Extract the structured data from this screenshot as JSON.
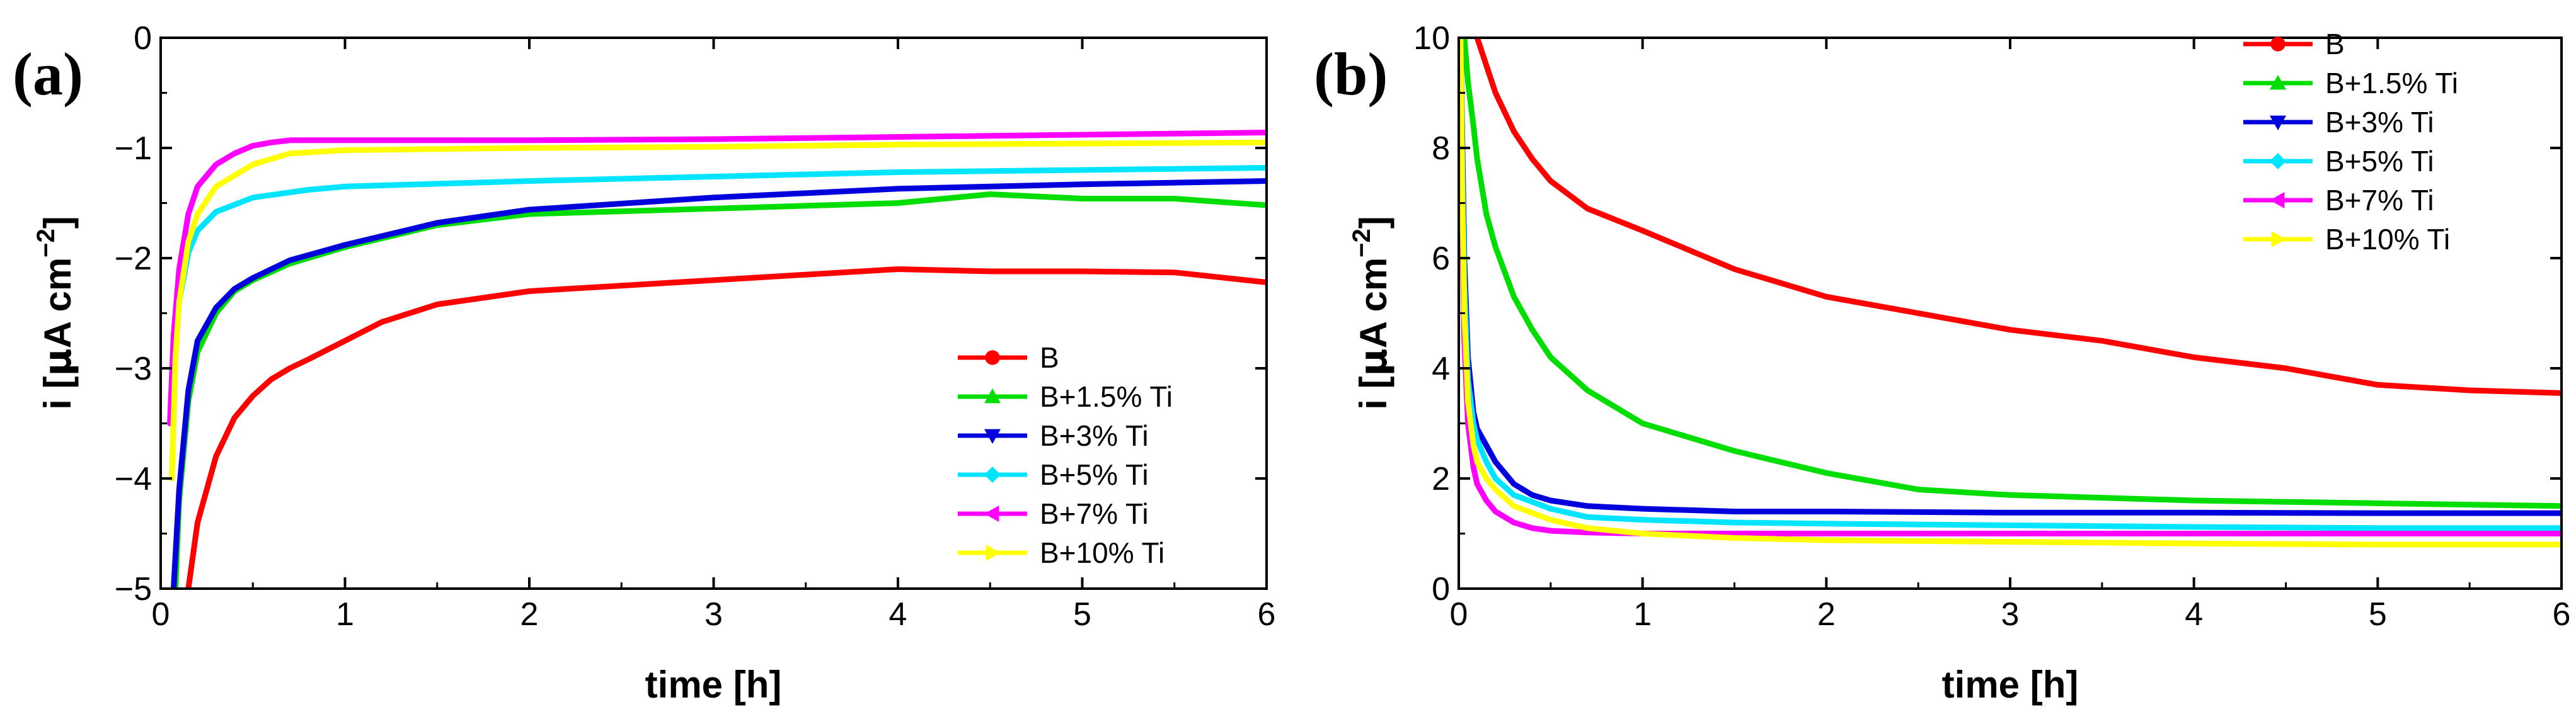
{
  "chart_data": [
    {
      "type": "line",
      "panel_label": "(a)",
      "xlabel": "time [h]",
      "ylabel": {
        "pre": "i [",
        "mu": "μ",
        "mid": "A cm",
        "exp": "−2",
        "post": "]"
      },
      "xlim": [
        0,
        6
      ],
      "ylim": [
        -5,
        0
      ],
      "xticks": [
        0,
        1,
        2,
        3,
        4,
        5,
        6
      ],
      "xtick_labels": [
        "0",
        "1",
        "2",
        "3",
        "4",
        "5",
        "6"
      ],
      "yticks": [
        -5,
        -4,
        -3,
        -2,
        -1,
        0
      ],
      "ytick_labels": [
        "−5",
        "−4",
        "−3",
        "−2",
        "−1",
        "0"
      ],
      "legend_position": "bottom-right",
      "series": [
        {
          "name": "B",
          "color": "#ff0000",
          "marker": "circle",
          "x": [
            0.15,
            0.2,
            0.3,
            0.4,
            0.5,
            0.6,
            0.7,
            0.8,
            1.0,
            1.2,
            1.5,
            2.0,
            2.5,
            3.0,
            3.5,
            4.0,
            4.5,
            5.0,
            5.5,
            6.0
          ],
          "y": [
            -5.0,
            -4.4,
            -3.8,
            -3.45,
            -3.25,
            -3.1,
            -3.0,
            -2.92,
            -2.75,
            -2.58,
            -2.42,
            -2.3,
            -2.25,
            -2.2,
            -2.15,
            -2.1,
            -2.12,
            -2.12,
            -2.13,
            -2.22
          ]
        },
        {
          "name": "B+1.5% Ti",
          "color": "#00dd00",
          "marker": "triangle-up",
          "x": [
            0.08,
            0.1,
            0.15,
            0.2,
            0.3,
            0.4,
            0.5,
            0.7,
            1.0,
            1.5,
            2.0,
            3.0,
            4.0,
            4.5,
            5.0,
            5.5,
            6.0
          ],
          "y": [
            -5.0,
            -4.2,
            -3.3,
            -2.85,
            -2.5,
            -2.3,
            -2.2,
            -2.05,
            -1.9,
            -1.7,
            -1.6,
            -1.55,
            -1.5,
            -1.42,
            -1.46,
            -1.46,
            -1.52
          ]
        },
        {
          "name": "B+3% Ti",
          "color": "#0000dd",
          "marker": "triangle-down",
          "x": [
            0.07,
            0.1,
            0.15,
            0.2,
            0.3,
            0.4,
            0.5,
            0.7,
            1.0,
            1.5,
            2.0,
            3.0,
            4.0,
            5.0,
            6.0
          ],
          "y": [
            -5.0,
            -4.1,
            -3.2,
            -2.75,
            -2.45,
            -2.28,
            -2.18,
            -2.02,
            -1.88,
            -1.68,
            -1.56,
            -1.45,
            -1.37,
            -1.33,
            -1.3
          ]
        },
        {
          "name": "B+5% Ti",
          "color": "#00e5ff",
          "marker": "diamond",
          "x": [
            0.06,
            0.08,
            0.1,
            0.15,
            0.2,
            0.3,
            0.5,
            0.8,
            1.0,
            2.0,
            3.0,
            4.0,
            5.0,
            6.0
          ],
          "y": [
            -4.0,
            -2.9,
            -2.4,
            -1.95,
            -1.75,
            -1.58,
            -1.45,
            -1.38,
            -1.35,
            -1.3,
            -1.26,
            -1.22,
            -1.2,
            -1.18
          ]
        },
        {
          "name": "B+7% Ti",
          "color": "#ff00ff",
          "marker": "triangle-left",
          "x": [
            0.05,
            0.07,
            0.1,
            0.15,
            0.2,
            0.3,
            0.4,
            0.5,
            0.6,
            0.7,
            1.0,
            2.0,
            3.0,
            4.0,
            5.0,
            6.0
          ],
          "y": [
            -3.5,
            -2.7,
            -2.1,
            -1.6,
            -1.35,
            -1.15,
            -1.05,
            -0.98,
            -0.95,
            -0.93,
            -0.93,
            -0.93,
            -0.92,
            -0.9,
            -0.88,
            -0.86
          ]
        },
        {
          "name": "B+10% Ti",
          "color": "#ffff00",
          "marker": "triangle-right",
          "x": [
            0.06,
            0.08,
            0.1,
            0.15,
            0.2,
            0.3,
            0.5,
            0.7,
            1.0,
            2.0,
            3.0,
            4.0,
            5.0,
            6.0
          ],
          "y": [
            -4.0,
            -2.9,
            -2.4,
            -1.85,
            -1.6,
            -1.35,
            -1.15,
            -1.05,
            -1.02,
            -1.0,
            -0.99,
            -0.97,
            -0.96,
            -0.95
          ]
        }
      ]
    },
    {
      "type": "line",
      "panel_label": "(b)",
      "xlabel": "time [h]",
      "ylabel": {
        "pre": "i [",
        "mu": "μ",
        "mid": "A cm",
        "exp": "−2",
        "post": "]"
      },
      "xlim": [
        0,
        6
      ],
      "ylim": [
        0,
        10
      ],
      "xticks": [
        0,
        1,
        2,
        3,
        4,
        5,
        6
      ],
      "xtick_labels": [
        "0",
        "1",
        "2",
        "3",
        "4",
        "5",
        "6"
      ],
      "yticks": [
        0,
        2,
        4,
        6,
        8,
        10
      ],
      "ytick_labels": [
        "0",
        "2",
        "4",
        "6",
        "8",
        "10"
      ],
      "legend_position": "top-right",
      "series": [
        {
          "name": "B",
          "color": "#ff0000",
          "marker": "circle",
          "x": [
            0.1,
            0.15,
            0.2,
            0.3,
            0.4,
            0.5,
            0.7,
            1.0,
            1.5,
            2.0,
            2.5,
            3.0,
            3.5,
            4.0,
            4.5,
            5.0,
            5.5,
            6.0
          ],
          "y": [
            10.0,
            9.5,
            9.0,
            8.3,
            7.8,
            7.4,
            6.9,
            6.5,
            5.8,
            5.3,
            5.0,
            4.7,
            4.5,
            4.2,
            4.0,
            3.7,
            3.6,
            3.55
          ]
        },
        {
          "name": "B+1.5% Ti",
          "color": "#00dd00",
          "marker": "triangle-up",
          "x": [
            0.03,
            0.05,
            0.08,
            0.1,
            0.15,
            0.2,
            0.3,
            0.4,
            0.5,
            0.7,
            1.0,
            1.5,
            2.0,
            2.5,
            3.0,
            4.0,
            5.0,
            6.0
          ],
          "y": [
            10.0,
            9.2,
            8.4,
            7.8,
            6.8,
            6.2,
            5.3,
            4.7,
            4.2,
            3.6,
            3.0,
            2.5,
            2.1,
            1.8,
            1.7,
            1.6,
            1.55,
            1.5
          ]
        },
        {
          "name": "B+3% Ti",
          "color": "#0000dd",
          "marker": "triangle-down",
          "x": [
            0.01,
            0.02,
            0.03,
            0.05,
            0.08,
            0.1,
            0.15,
            0.2,
            0.3,
            0.4,
            0.5,
            0.7,
            1.0,
            1.5,
            2.0,
            3.0,
            4.0,
            5.0,
            6.0
          ],
          "y": [
            10.0,
            8.0,
            6.0,
            4.2,
            3.2,
            2.9,
            2.6,
            2.3,
            1.9,
            1.7,
            1.6,
            1.5,
            1.45,
            1.4,
            1.4,
            1.38,
            1.38,
            1.37,
            1.37
          ]
        },
        {
          "name": "B+5% Ti",
          "color": "#00e5ff",
          "marker": "diamond",
          "x": [
            0.01,
            0.02,
            0.03,
            0.05,
            0.08,
            0.1,
            0.15,
            0.2,
            0.3,
            0.5,
            0.7,
            1.0,
            1.5,
            2.0,
            3.0,
            4.0,
            5.0,
            6.0
          ],
          "y": [
            10.0,
            7.5,
            5.6,
            3.8,
            3.0,
            2.7,
            2.3,
            2.0,
            1.7,
            1.45,
            1.3,
            1.25,
            1.2,
            1.18,
            1.15,
            1.12,
            1.1,
            1.1
          ]
        },
        {
          "name": "B+7% Ti",
          "color": "#ff00ff",
          "marker": "triangle-left",
          "x": [
            0.01,
            0.02,
            0.03,
            0.05,
            0.08,
            0.1,
            0.15,
            0.2,
            0.3,
            0.4,
            0.5,
            0.7,
            1.0,
            2.0,
            3.0,
            4.0,
            5.0,
            6.0
          ],
          "y": [
            10.0,
            6.5,
            4.5,
            3.0,
            2.2,
            1.9,
            1.6,
            1.4,
            1.2,
            1.1,
            1.05,
            1.02,
            1.0,
            1.0,
            1.0,
            1.0,
            1.0,
            1.0
          ]
        },
        {
          "name": "B+10% Ti",
          "color": "#ffff00",
          "marker": "triangle-right",
          "x": [
            0.01,
            0.02,
            0.03,
            0.05,
            0.08,
            0.1,
            0.15,
            0.2,
            0.3,
            0.5,
            0.7,
            1.0,
            1.5,
            2.0,
            3.0,
            4.0,
            5.0,
            6.0
          ],
          "y": [
            10.0,
            7.0,
            5.0,
            3.4,
            2.6,
            2.3,
            2.0,
            1.8,
            1.5,
            1.25,
            1.1,
            1.0,
            0.92,
            0.88,
            0.85,
            0.82,
            0.8,
            0.8
          ]
        }
      ]
    }
  ]
}
